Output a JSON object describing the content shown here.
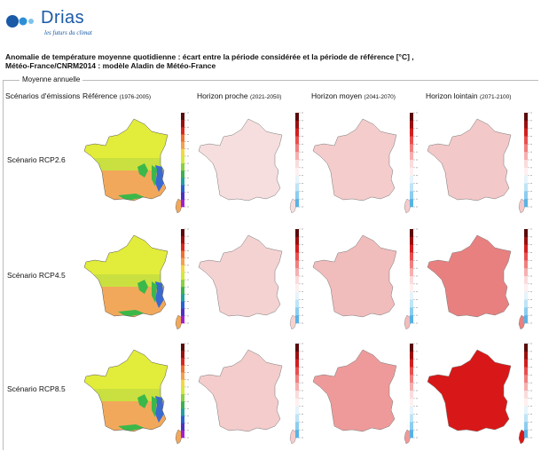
{
  "brand": {
    "name": "Drias",
    "tagline": "les futurs du climat",
    "color": "#1a5aa6"
  },
  "title_line1": "Anomalie de température moyenne quotidienne : écart entre la période considérée et la période de référence [°C] ,",
  "title_line2": "Météo-France/CNRM2014 : modèle Aladin de Météo-France",
  "fieldset_legend": "Moyenne annuelle",
  "columns": [
    {
      "label": "Scénarios d'émissions",
      "sub": ""
    },
    {
      "label": "Référence",
      "sub": "(1976-2005)"
    },
    {
      "label": "Horizon proche",
      "sub": "(2021-2050)"
    },
    {
      "label": "Horizon moyen",
      "sub": "(2041-2070)"
    },
    {
      "label": "Horizon lointain",
      "sub": "(2071-2100)"
    }
  ],
  "rows": [
    {
      "label": "Scénario RCP2.6",
      "anomaly_colors": [
        "#f7dede",
        "#f4cccc",
        "#f3c8c8"
      ]
    },
    {
      "label": "Scénario RCP4.5",
      "anomaly_colors": [
        "#f5d2d2",
        "#f1bcbc",
        "#e88080"
      ]
    },
    {
      "label": "Scénario RCP8.5",
      "anomaly_colors": [
        "#f4cccc",
        "#ee9a9a",
        "#d81818"
      ]
    }
  ],
  "reference_colors": {
    "north": "#e2ec3a",
    "center": "#c9e040",
    "south": "#f2a85a",
    "mountain_green": "#3bb84a",
    "mountain_blue": "#3a6ad0"
  }
}
